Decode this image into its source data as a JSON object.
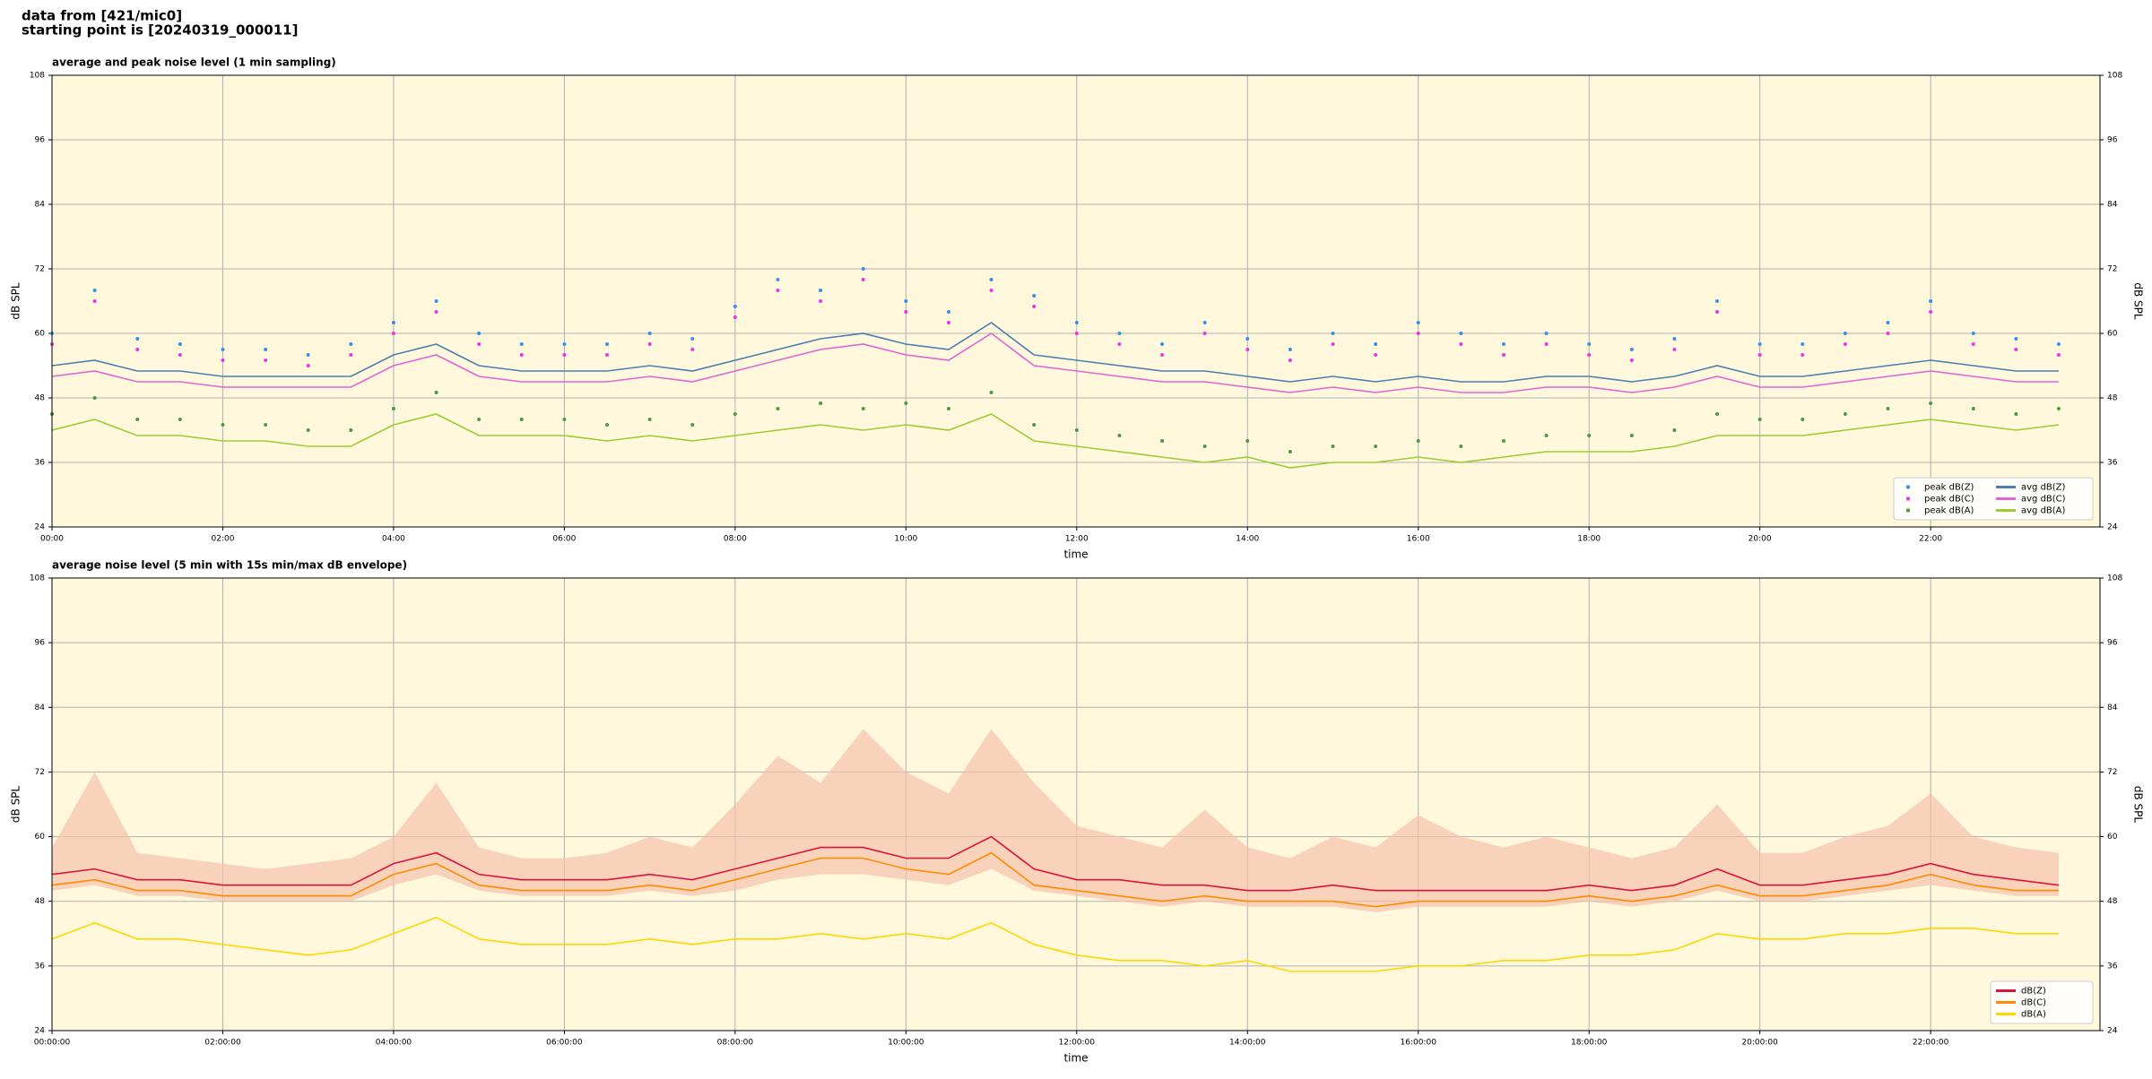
{
  "header": [
    "data from [421/mic0]",
    "starting point is [20240319_000011]"
  ],
  "chart_data": [
    {
      "type": "line",
      "title": "average and peak noise level (1 min sampling)",
      "xlabel": "time",
      "ylabel": "dB SPL",
      "x": [
        "00:00",
        "00:30",
        "01:00",
        "01:30",
        "02:00",
        "02:30",
        "03:00",
        "03:30",
        "04:00",
        "04:30",
        "05:00",
        "05:30",
        "06:00",
        "06:30",
        "07:00",
        "07:30",
        "08:00",
        "08:30",
        "09:00",
        "09:30",
        "10:00",
        "10:30",
        "11:00",
        "11:30",
        "12:00",
        "12:30",
        "13:00",
        "13:30",
        "14:00",
        "14:30",
        "15:00",
        "15:30",
        "16:00",
        "16:30",
        "17:00",
        "17:30",
        "18:00",
        "18:30",
        "19:00",
        "19:30",
        "20:00",
        "20:30",
        "21:00",
        "21:30",
        "22:00",
        "22:30",
        "23:00",
        "23:30"
      ],
      "xlim": [
        "00:00",
        "23:59"
      ],
      "xticks": [
        "00:00",
        "02:00",
        "04:00",
        "06:00",
        "08:00",
        "10:00",
        "12:00",
        "14:00",
        "16:00",
        "18:00",
        "20:00",
        "22:00"
      ],
      "ylim": [
        24,
        108
      ],
      "yticks": [
        24,
        36,
        48,
        60,
        72,
        84,
        96,
        108
      ],
      "grid": true,
      "legend": "lower right",
      "background": "#fff8dc",
      "series": [
        {
          "name": "peak dB(Z)",
          "color": "#3a8ee6",
          "mark": "dot",
          "values": [
            60,
            68,
            59,
            58,
            57,
            57,
            56,
            58,
            62,
            66,
            60,
            58,
            58,
            58,
            60,
            59,
            65,
            70,
            68,
            72,
            66,
            64,
            70,
            67,
            62,
            60,
            58,
            62,
            59,
            57,
            60,
            58,
            62,
            60,
            58,
            60,
            58,
            57,
            59,
            66,
            58,
            58,
            60,
            62,
            66,
            60,
            59,
            58
          ]
        },
        {
          "name": "peak dB(C)",
          "color": "#e838e0",
          "mark": "dot",
          "values": [
            58,
            66,
            57,
            56,
            55,
            55,
            54,
            56,
            60,
            64,
            58,
            56,
            56,
            56,
            58,
            57,
            63,
            68,
            66,
            70,
            64,
            62,
            68,
            65,
            60,
            58,
            56,
            60,
            57,
            55,
            58,
            56,
            60,
            58,
            56,
            58,
            56,
            55,
            57,
            64,
            56,
            56,
            58,
            60,
            64,
            58,
            57,
            56
          ]
        },
        {
          "name": "peak dB(A)",
          "color": "#4a9a4a",
          "mark": "dot",
          "values": [
            45,
            48,
            44,
            44,
            43,
            43,
            42,
            42,
            46,
            49,
            44,
            44,
            44,
            43,
            44,
            43,
            45,
            46,
            47,
            46,
            47,
            46,
            49,
            43,
            42,
            41,
            40,
            39,
            40,
            38,
            39,
            39,
            40,
            39,
            40,
            41,
            41,
            41,
            42,
            45,
            44,
            44,
            45,
            46,
            47,
            46,
            45,
            46
          ]
        },
        {
          "name": "avg dB(Z)",
          "color": "#4a7fb0",
          "mark": "line",
          "values": [
            54,
            55,
            53,
            53,
            52,
            52,
            52,
            52,
            56,
            58,
            54,
            53,
            53,
            53,
            54,
            53,
            55,
            57,
            59,
            60,
            58,
            57,
            62,
            56,
            55,
            54,
            53,
            53,
            52,
            51,
            52,
            51,
            52,
            51,
            51,
            52,
            52,
            51,
            52,
            54,
            52,
            52,
            53,
            54,
            55,
            54,
            53,
            53
          ]
        },
        {
          "name": "avg dB(C)",
          "color": "#e066d0",
          "mark": "line",
          "values": [
            52,
            53,
            51,
            51,
            50,
            50,
            50,
            50,
            54,
            56,
            52,
            51,
            51,
            51,
            52,
            51,
            53,
            55,
            57,
            58,
            56,
            55,
            60,
            54,
            53,
            52,
            51,
            51,
            50,
            49,
            50,
            49,
            50,
            49,
            49,
            50,
            50,
            49,
            50,
            52,
            50,
            50,
            51,
            52,
            53,
            52,
            51,
            51
          ]
        },
        {
          "name": "avg dB(A)",
          "color": "#9acd32",
          "mark": "line",
          "values": [
            42,
            44,
            41,
            41,
            40,
            40,
            39,
            39,
            43,
            45,
            41,
            41,
            41,
            40,
            41,
            40,
            41,
            42,
            43,
            42,
            43,
            42,
            45,
            40,
            39,
            38,
            37,
            36,
            37,
            35,
            36,
            36,
            37,
            36,
            37,
            38,
            38,
            38,
            39,
            41,
            41,
            41,
            42,
            43,
            44,
            43,
            42,
            43
          ]
        }
      ]
    },
    {
      "type": "line",
      "title": "average noise level (5 min with 15s min/max dB envelope)",
      "xlabel": "time",
      "ylabel": "dB SPL",
      "x": [
        "00:00:00",
        "00:30:00",
        "01:00:00",
        "01:30:00",
        "02:00:00",
        "02:30:00",
        "03:00:00",
        "03:30:00",
        "04:00:00",
        "04:30:00",
        "05:00:00",
        "05:30:00",
        "06:00:00",
        "06:30:00",
        "07:00:00",
        "07:30:00",
        "08:00:00",
        "08:30:00",
        "09:00:00",
        "09:30:00",
        "10:00:00",
        "10:30:00",
        "11:00:00",
        "11:30:00",
        "12:00:00",
        "12:30:00",
        "13:00:00",
        "13:30:00",
        "14:00:00",
        "14:30:00",
        "15:00:00",
        "15:30:00",
        "16:00:00",
        "16:30:00",
        "17:00:00",
        "17:30:00",
        "18:00:00",
        "18:30:00",
        "19:00:00",
        "19:30:00",
        "20:00:00",
        "20:30:00",
        "21:00:00",
        "21:30:00",
        "22:00:00",
        "22:30:00",
        "23:00:00",
        "23:30:00"
      ],
      "xlim": [
        "00:00:00",
        "23:59:00"
      ],
      "xticks": [
        "00:00:00",
        "02:00:00",
        "04:00:00",
        "06:00:00",
        "08:00:00",
        "10:00:00",
        "12:00:00",
        "14:00:00",
        "16:00:00",
        "18:00:00",
        "20:00:00",
        "22:00:00"
      ],
      "ylim": [
        24,
        108
      ],
      "yticks": [
        24,
        36,
        48,
        60,
        72,
        84,
        96,
        108
      ],
      "grid": true,
      "legend": "lower right",
      "background": "#fff8dc",
      "envelope": {
        "color": "#f6c2ac",
        "min": [
          50,
          51,
          49,
          49,
          48,
          48,
          48,
          48,
          51,
          53,
          50,
          49,
          49,
          49,
          50,
          49,
          50,
          52,
          53,
          53,
          52,
          51,
          54,
          50,
          49,
          48,
          47,
          48,
          47,
          47,
          47,
          46,
          47,
          47,
          47,
          47,
          48,
          47,
          48,
          50,
          48,
          48,
          49,
          50,
          51,
          50,
          49,
          49
        ],
        "max": [
          58,
          72,
          57,
          56,
          55,
          54,
          55,
          56,
          60,
          70,
          58,
          56,
          56,
          57,
          60,
          58,
          66,
          75,
          70,
          80,
          72,
          68,
          80,
          70,
          62,
          60,
          58,
          65,
          58,
          56,
          60,
          58,
          64,
          60,
          58,
          60,
          58,
          56,
          58,
          66,
          57,
          57,
          60,
          62,
          68,
          60,
          58,
          57
        ]
      },
      "series": [
        {
          "name": "dB(Z)",
          "color": "#dc143c",
          "mark": "line",
          "values": [
            53,
            54,
            52,
            52,
            51,
            51,
            51,
            51,
            55,
            57,
            53,
            52,
            52,
            52,
            53,
            52,
            54,
            56,
            58,
            58,
            56,
            56,
            60,
            54,
            52,
            52,
            51,
            51,
            50,
            50,
            51,
            50,
            50,
            50,
            50,
            50,
            51,
            50,
            51,
            54,
            51,
            51,
            52,
            53,
            55,
            53,
            52,
            51
          ]
        },
        {
          "name": "dB(C)",
          "color": "#ff8c00",
          "mark": "line",
          "values": [
            51,
            52,
            50,
            50,
            49,
            49,
            49,
            49,
            53,
            55,
            51,
            50,
            50,
            50,
            51,
            50,
            52,
            54,
            56,
            56,
            54,
            53,
            57,
            51,
            50,
            49,
            48,
            49,
            48,
            48,
            48,
            47,
            48,
            48,
            48,
            48,
            49,
            48,
            49,
            51,
            49,
            49,
            50,
            51,
            53,
            51,
            50,
            50
          ]
        },
        {
          "name": "dB(A)",
          "color": "#ffd700",
          "mark": "line",
          "values": [
            41,
            44,
            41,
            41,
            40,
            39,
            38,
            39,
            42,
            45,
            41,
            40,
            40,
            40,
            41,
            40,
            41,
            41,
            42,
            41,
            42,
            41,
            44,
            40,
            38,
            37,
            37,
            36,
            37,
            35,
            35,
            35,
            36,
            36,
            37,
            37,
            38,
            38,
            39,
            42,
            41,
            41,
            42,
            42,
            43,
            43,
            42,
            42
          ]
        }
      ]
    }
  ]
}
